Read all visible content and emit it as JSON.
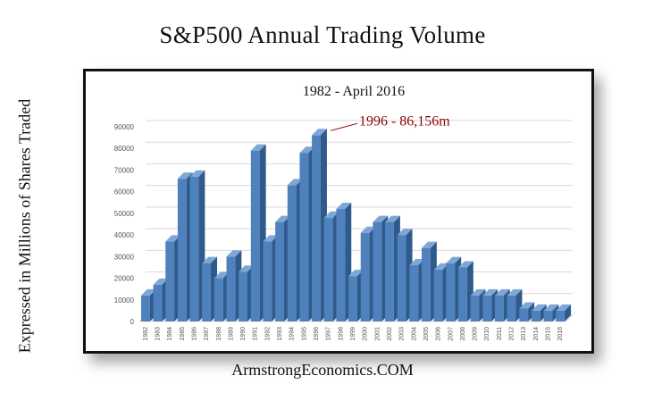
{
  "title": "S&P500 Annual Trading Volume",
  "footer": "ArmstrongEconomics.COM",
  "chart_data": {
    "type": "bar",
    "title": "1982 - April 2016",
    "ylabel": "Expressed in Millions of Shares Traded",
    "xlabel": "",
    "ylim": [
      0,
      90000
    ],
    "yticks": [
      "0",
      "10000",
      "20000",
      "30000",
      "40000",
      "50000",
      "60000",
      "70000",
      "80000",
      "90000"
    ],
    "grid": true,
    "bar_color": "#4f81bd",
    "annotation": {
      "text": "1996 - 86,156m",
      "category": "1996",
      "color": "#8b0000"
    },
    "categories": [
      "1982",
      "1983",
      "1984",
      "1985",
      "1986",
      "1987",
      "1988",
      "1989",
      "1990",
      "1991",
      "1992",
      "1993",
      "1994",
      "1995",
      "1996",
      "1997",
      "1998",
      "1999",
      "2000",
      "2001",
      "2002",
      "2003",
      "2004",
      "2005",
      "2006",
      "2007",
      "2008",
      "2009",
      "2010",
      "2011",
      "2012",
      "2013",
      "2014",
      "2015",
      "2016"
    ],
    "values": [
      12000,
      17000,
      37000,
      66000,
      67000,
      27000,
      20000,
      30000,
      23000,
      79000,
      37000,
      46000,
      63000,
      78000,
      86156,
      48000,
      52000,
      21000,
      41000,
      46000,
      46000,
      40000,
      26000,
      34000,
      24000,
      27000,
      25000,
      12000,
      12000,
      12000,
      12000,
      6000,
      5000,
      5000,
      5000
    ]
  }
}
